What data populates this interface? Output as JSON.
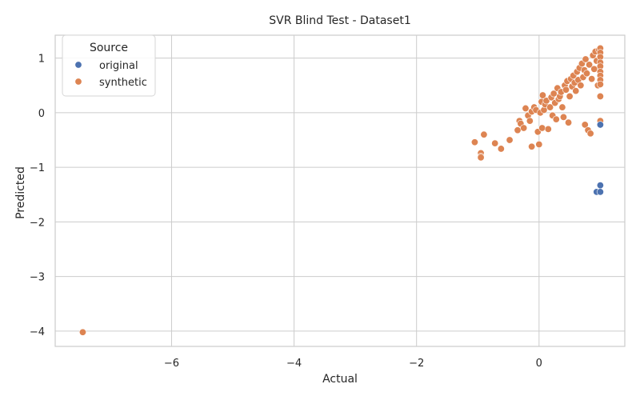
{
  "chart_data": {
    "type": "scatter",
    "title": "SVR Blind Test - Dataset1",
    "xlabel": "Actual",
    "ylabel": "Predicted",
    "xlim": [
      -7.9,
      1.4
    ],
    "ylim": [
      -4.28,
      1.42
    ],
    "xticks": [
      -6,
      -4,
      -2,
      0
    ],
    "yticks": [
      1,
      0,
      -1,
      -2,
      -3,
      -4
    ],
    "xtick_labels": [
      "−6",
      "−4",
      "−2",
      "0"
    ],
    "ytick_labels": [
      "1",
      "0",
      "−1",
      "−2",
      "−3",
      "−4"
    ],
    "grid": true,
    "legend": {
      "title": "Source",
      "position": "top-left",
      "entries": [
        "original",
        "synthetic"
      ]
    },
    "colors": {
      "original": "#4c72b0",
      "synthetic": "#dd8452"
    },
    "series": [
      {
        "name": "original",
        "points": [
          [
            1.0,
            -0.22
          ],
          [
            1.0,
            -1.33
          ],
          [
            0.94,
            -1.45
          ],
          [
            1.0,
            -1.45
          ]
        ]
      },
      {
        "name": "synthetic",
        "points": [
          [
            -7.45,
            -4.02
          ],
          [
            -1.05,
            -0.54
          ],
          [
            -0.95,
            -0.74
          ],
          [
            -0.95,
            -0.8
          ],
          [
            -0.95,
            -0.82
          ],
          [
            -0.9,
            -0.4
          ],
          [
            -0.72,
            -0.56
          ],
          [
            -0.62,
            -0.66
          ],
          [
            -0.48,
            -0.5
          ],
          [
            -0.35,
            -0.32
          ],
          [
            -0.32,
            -0.15
          ],
          [
            -0.3,
            -0.2
          ],
          [
            -0.25,
            -0.28
          ],
          [
            -0.22,
            0.08
          ],
          [
            -0.18,
            -0.05
          ],
          [
            -0.15,
            -0.15
          ],
          [
            -0.12,
            -0.62
          ],
          [
            -0.12,
            0.02
          ],
          [
            -0.08,
            0.1
          ],
          [
            -0.05,
            0.05
          ],
          [
            -0.02,
            -0.35
          ],
          [
            0.0,
            -0.58
          ],
          [
            0.02,
            0.0
          ],
          [
            0.04,
            0.2
          ],
          [
            0.05,
            -0.28
          ],
          [
            0.06,
            0.32
          ],
          [
            0.08,
            0.05
          ],
          [
            0.1,
            0.15
          ],
          [
            0.12,
            0.22
          ],
          [
            0.15,
            -0.3
          ],
          [
            0.18,
            0.1
          ],
          [
            0.2,
            0.28
          ],
          [
            0.22,
            -0.05
          ],
          [
            0.24,
            0.35
          ],
          [
            0.26,
            0.18
          ],
          [
            0.28,
            -0.12
          ],
          [
            0.3,
            0.45
          ],
          [
            0.32,
            0.25
          ],
          [
            0.34,
            0.3
          ],
          [
            0.36,
            0.38
          ],
          [
            0.38,
            0.1
          ],
          [
            0.4,
            -0.08
          ],
          [
            0.42,
            0.5
          ],
          [
            0.44,
            0.42
          ],
          [
            0.46,
            0.58
          ],
          [
            0.48,
            -0.18
          ],
          [
            0.5,
            0.3
          ],
          [
            0.52,
            0.62
          ],
          [
            0.54,
            0.48
          ],
          [
            0.56,
            0.68
          ],
          [
            0.58,
            0.55
          ],
          [
            0.6,
            0.4
          ],
          [
            0.62,
            0.75
          ],
          [
            0.64,
            0.6
          ],
          [
            0.66,
            0.82
          ],
          [
            0.68,
            0.5
          ],
          [
            0.7,
            0.9
          ],
          [
            0.72,
            0.65
          ],
          [
            0.74,
            0.78
          ],
          [
            0.75,
            -0.22
          ],
          [
            0.76,
            0.98
          ],
          [
            0.78,
            0.72
          ],
          [
            0.8,
            -0.32
          ],
          [
            0.82,
            0.88
          ],
          [
            0.84,
            -0.38
          ],
          [
            0.86,
            0.62
          ],
          [
            0.88,
            1.05
          ],
          [
            0.9,
            0.8
          ],
          [
            0.92,
            1.12
          ],
          [
            0.94,
            0.95
          ],
          [
            0.96,
            0.5
          ],
          [
            0.98,
            1.15
          ],
          [
            1.0,
            1.18
          ],
          [
            1.0,
            1.1
          ],
          [
            1.0,
            1.02
          ],
          [
            1.0,
            0.92
          ],
          [
            1.0,
            0.85
          ],
          [
            1.0,
            0.75
          ],
          [
            1.0,
            0.68
          ],
          [
            1.0,
            0.6
          ],
          [
            1.0,
            0.52
          ],
          [
            1.0,
            0.3
          ],
          [
            1.0,
            -0.15
          ]
        ]
      }
    ]
  }
}
